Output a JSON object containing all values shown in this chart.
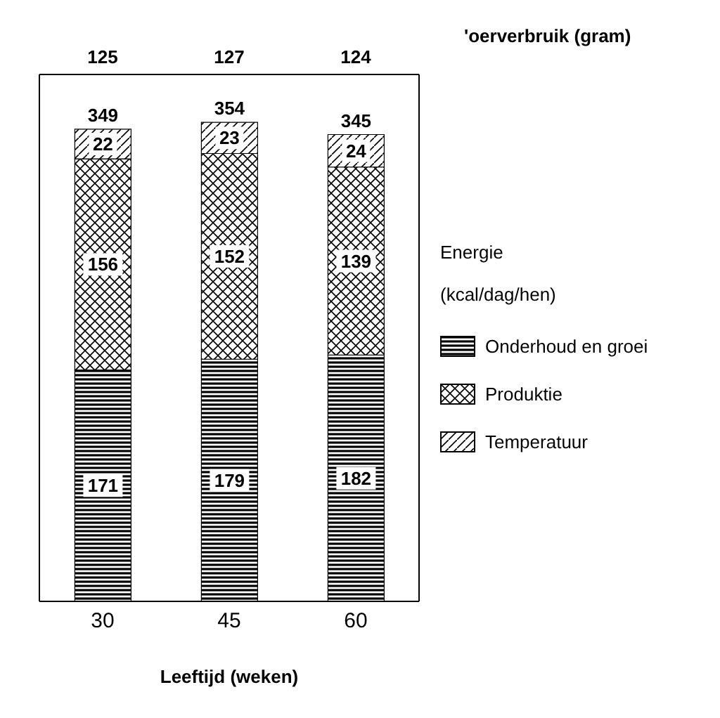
{
  "chart_data": {
    "type": "bar",
    "stacked": true,
    "xlabel": "Leeftijd  (weken)",
    "legend_title": "Energie\n(kcal/dag/hen)",
    "legend": "right",
    "categories": [
      "30",
      "45",
      "60"
    ],
    "series": [
      {
        "name": "Onderhoud en groei",
        "color": "#000000",
        "values": [
          171,
          179,
          182
        ]
      },
      {
        "name": "Produktie",
        "color": "#000000",
        "values": [
          156,
          152,
          139
        ]
      },
      {
        "name": "Temperatuur",
        "color": "#000000",
        "values": [
          22,
          23,
          24
        ]
      }
    ],
    "data_labels": true,
    "totals": [
      "349",
      "354",
      "345"
    ],
    "annotations": [
      "125",
      "127",
      "124",
      "'oerverbruik  (gram)"
    ]
  }
}
